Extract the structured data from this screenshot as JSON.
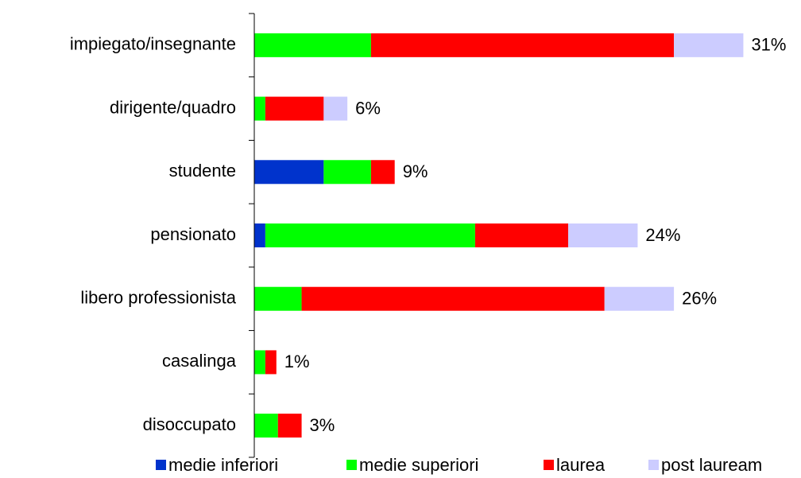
{
  "chart_data": {
    "type": "bar",
    "orientation": "horizontal",
    "stacked": true,
    "categories": [
      "impiegato/insegnante",
      "dirigente/quadro",
      "studente",
      "pensionato",
      "libero professionista",
      "casalinga",
      "disoccupato"
    ],
    "series": [
      {
        "name": "medie inferiori",
        "color": "#0033cc",
        "values": [
          0,
          0,
          4.4,
          0.7,
          0,
          0,
          0
        ]
      },
      {
        "name": "medie superiori",
        "color": "#00ff00",
        "values": [
          7.4,
          0.7,
          3.0,
          13.3,
          3.0,
          0.7,
          1.5
        ]
      },
      {
        "name": "laurea",
        "color": "#ff0000",
        "values": [
          19.2,
          3.7,
          1.5,
          5.9,
          19.2,
          0.7,
          1.5
        ]
      },
      {
        "name": "post lauream",
        "color": "#ccccff",
        "values": [
          4.4,
          1.5,
          0,
          4.4,
          4.4,
          0,
          0
        ]
      }
    ],
    "totals": [
      31,
      6,
      9,
      24,
      26,
      1,
      3
    ],
    "total_labels": [
      "31%",
      "6%",
      "9%",
      "24%",
      "26%",
      "1%",
      "3%"
    ],
    "xlim": [
      0,
      34
    ],
    "legend": "bottom"
  }
}
